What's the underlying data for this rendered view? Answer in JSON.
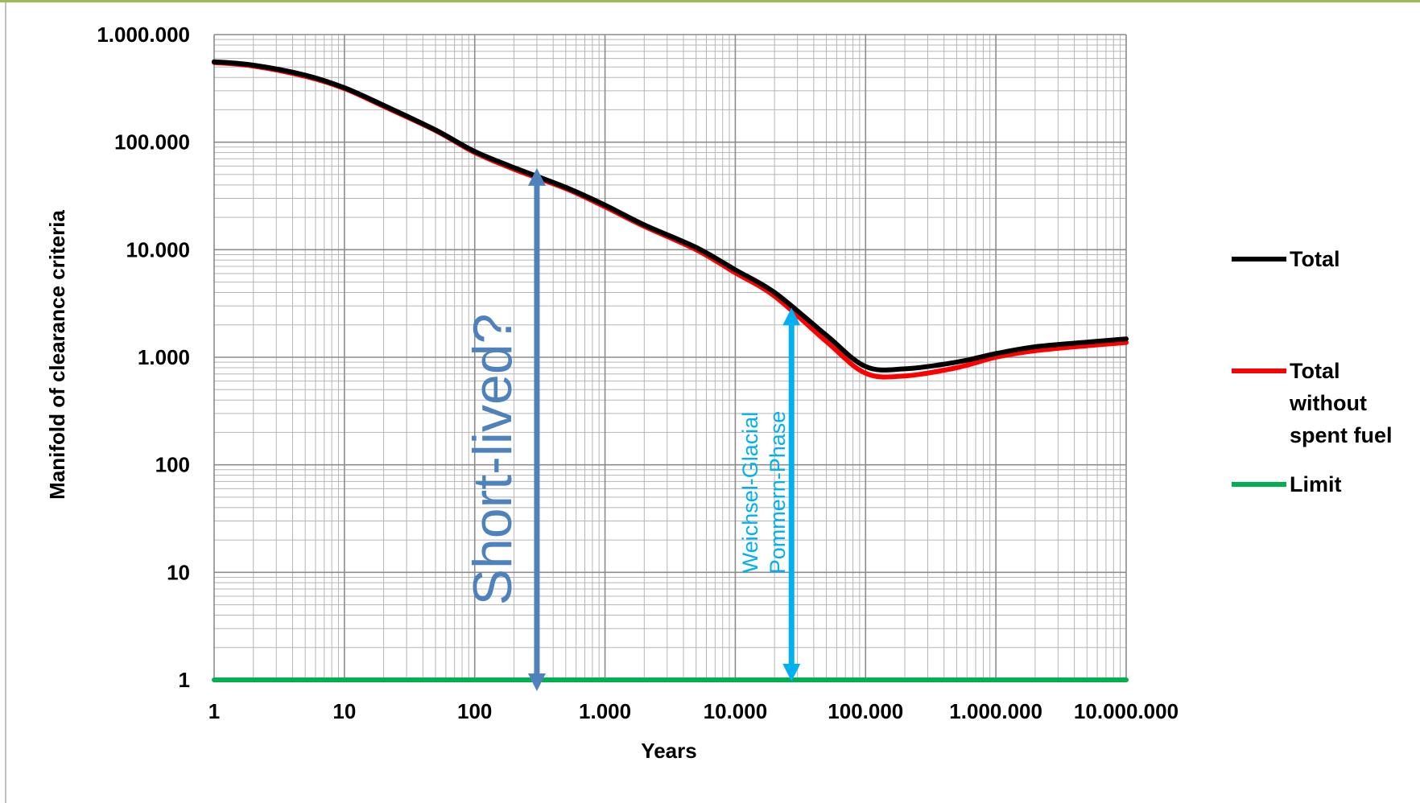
{
  "chart_data": {
    "type": "line",
    "title": "",
    "xlabel": "Years",
    "ylabel": "Manifold of clearance criteria",
    "x_scale": "log",
    "y_scale": "log",
    "xlim": [
      1,
      10000000
    ],
    "ylim": [
      1,
      1000000
    ],
    "grid": true,
    "legend_position": "right",
    "x_tick_labels": [
      "1",
      "10",
      "100",
      "1.000",
      "10.000",
      "100.000",
      "1.000.000",
      "10.000.000"
    ],
    "y_tick_labels": [
      "1",
      "10",
      "100",
      "1.000",
      "10.000",
      "100.000",
      "1.000.000"
    ],
    "series": [
      {
        "name": "Total",
        "color": "#000000",
        "x": [
          1,
          2,
          5,
          10,
          20,
          50,
          100,
          200,
          500,
          1000,
          2000,
          5000,
          10000,
          20000,
          50000,
          100000,
          200000,
          500000,
          1000000,
          2000000,
          5000000,
          10000000
        ],
        "y": [
          560000,
          520000,
          420000,
          320000,
          220000,
          130000,
          82000,
          58000,
          38000,
          26000,
          17000,
          10500,
          6500,
          4000,
          1600,
          820,
          780,
          900,
          1080,
          1250,
          1380,
          1480
        ]
      },
      {
        "name": "Total without spent fuel",
        "color": "#ff0000",
        "x": [
          1,
          2,
          5,
          10,
          20,
          50,
          100,
          200,
          500,
          1000,
          2000,
          5000,
          10000,
          20000,
          50000,
          100000,
          200000,
          500000,
          1000000,
          2000000,
          5000000,
          10000000
        ],
        "y": [
          550000,
          510000,
          410000,
          315000,
          215000,
          128000,
          80000,
          56000,
          37000,
          25000,
          16500,
          10000,
          6100,
          3700,
          1400,
          710,
          670,
          800,
          1000,
          1150,
          1280,
          1370
        ]
      },
      {
        "name": "Limit",
        "color": "#00b050",
        "x": [
          1,
          10000000
        ],
        "y": [
          1,
          1
        ]
      }
    ],
    "annotations": [
      {
        "text": "Short-lived?",
        "color": "#4f81bd",
        "x": 300,
        "y_from": 1,
        "y_to": 50000
      },
      {
        "text_line1": "Weichsel-Glacial",
        "text_line2": "Pommern-Phase",
        "color": "#00b0f0",
        "x": 27000,
        "y_from": 1,
        "y_to": 2700
      }
    ]
  }
}
